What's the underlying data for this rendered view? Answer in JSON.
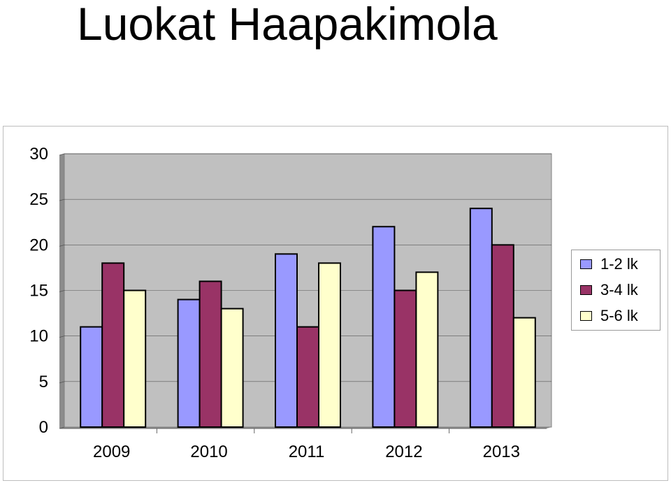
{
  "page": {
    "title": "Luokat Haapakimola"
  },
  "chart_data": {
    "type": "bar",
    "title": "",
    "xlabel": "",
    "ylabel": "",
    "categories": [
      "2009",
      "2010",
      "2011",
      "2012",
      "2013"
    ],
    "series": [
      {
        "name": "1-2 lk",
        "values": [
          11,
          14,
          19,
          22,
          24
        ],
        "color": "#9999ff"
      },
      {
        "name": "3-4 lk",
        "values": [
          18,
          16,
          11,
          15,
          20
        ],
        "color": "#993366"
      },
      {
        "name": "5-6 lk",
        "values": [
          15,
          13,
          18,
          17,
          12
        ],
        "color": "#ffffcc"
      }
    ],
    "ylim": [
      0,
      30
    ],
    "yticks": [
      "0",
      "5",
      "10",
      "15",
      "20",
      "25",
      "30"
    ],
    "grid": true,
    "plot_background": "#c0c0c0",
    "legend_position": "right"
  }
}
